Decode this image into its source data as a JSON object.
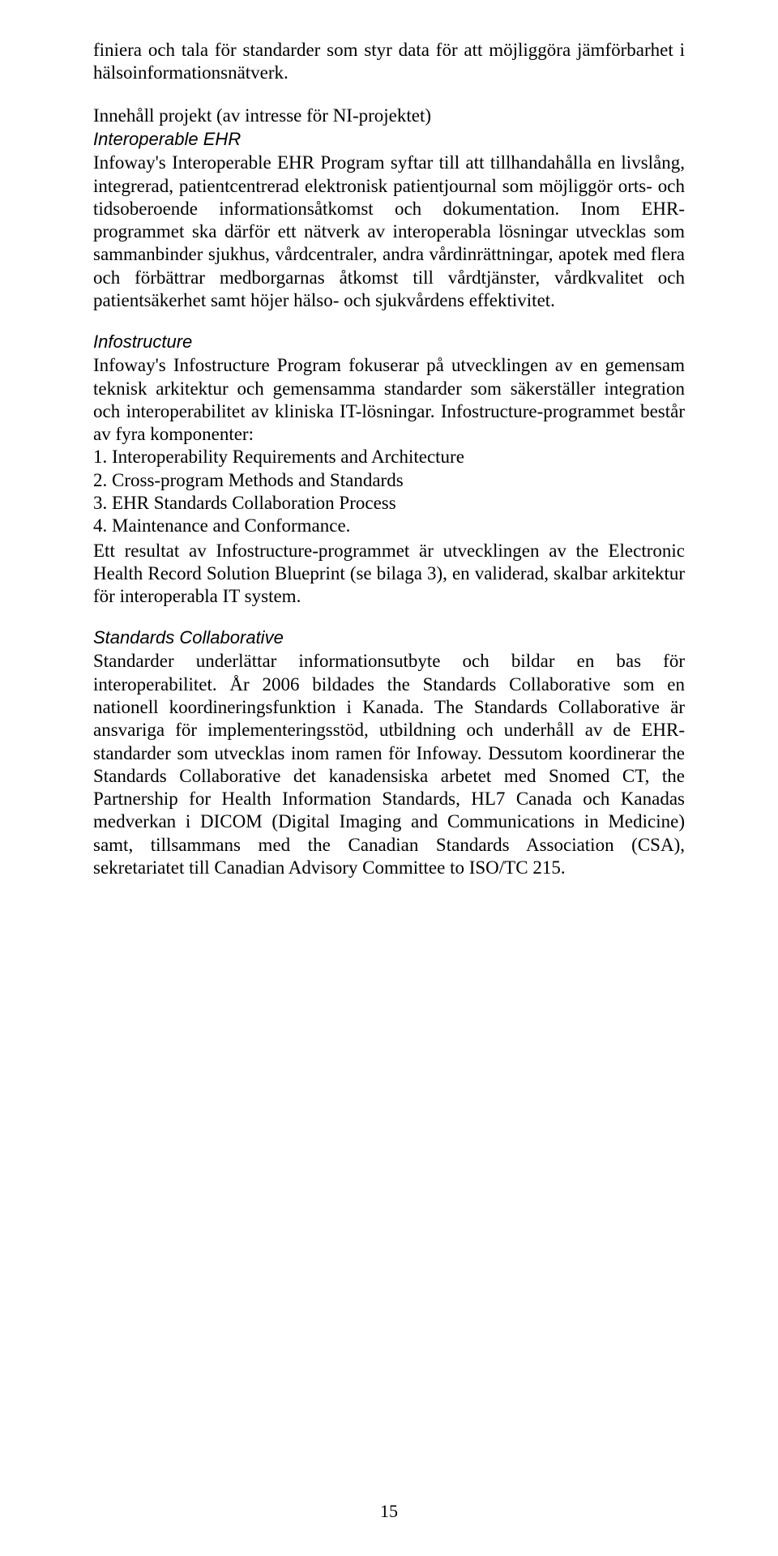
{
  "intro": "finiera och tala för standarder som styr data för att möjliggöra jämförbarhet i hälsoinformationsnätverk.",
  "section1": {
    "heading": "Innehåll projekt (av intresse för NI-projektet)",
    "sub": "Interoperable EHR",
    "body": "Infoway's Interoperable EHR Program syftar till att tillhandahålla en livslång, integrerad, patientcentrerad elektronisk patientjournal som möjliggör orts- och tidsoberoende informationsåtkomst och dokumentation. Inom EHR-programmet ska därför ett nätverk av interoperabla lösningar utvecklas som sammanbinder sjukhus, vårdcentraler, andra vårdinrättningar, apotek med flera och förbättrar medborgarnas åtkomst till vårdtjänster, vårdkvalitet och patientsäkerhet samt höjer hälso- och sjukvårdens effektivitet."
  },
  "section2": {
    "sub": "Infostructure",
    "lead": "Infoway's Infostructure Program fokuserar på utvecklingen av en gemensam teknisk arkitektur och gemensamma standarder som säkerställer integration och interoperabilitet av kliniska IT-lösningar. Infostructure-programmet består av fyra komponenter:",
    "items": [
      "1.  Interoperability Requirements and Architecture",
      "2.  Cross-program Methods and Standards",
      "3.  EHR Standards Collaboration Process",
      "4.  Maintenance and Conformance."
    ],
    "tail": "Ett resultat av Infostructure-programmet är utvecklingen av the Electronic Health Record Solution Blueprint (se bilaga 3), en validerad, skalbar arkitektur för interoperabla IT system."
  },
  "section3": {
    "sub": "Standards Collaborative",
    "body": "Standarder underlättar informationsutbyte och bildar en bas för interoperabilitet. År 2006 bildades the Standards Collaborative som en nationell koordineringsfunktion i Kanada. The Standards Collaborative är ansvariga för implementeringsstöd, utbildning och underhåll av de EHR-standarder som utvecklas inom ramen för Infoway. Dessutom koordinerar the Standards Collaborative det kanadensiska arbetet med Snomed CT, the Partnership for Health Information Standards, HL7 Canada och Kanadas medverkan i DICOM (Digital Imaging and Communications in Medicine) samt, tillsammans med the Canadian Standards Association (CSA), sekretariatet till Canadian Advisory Committee to ISO/TC 215."
  },
  "pagenum": "15"
}
